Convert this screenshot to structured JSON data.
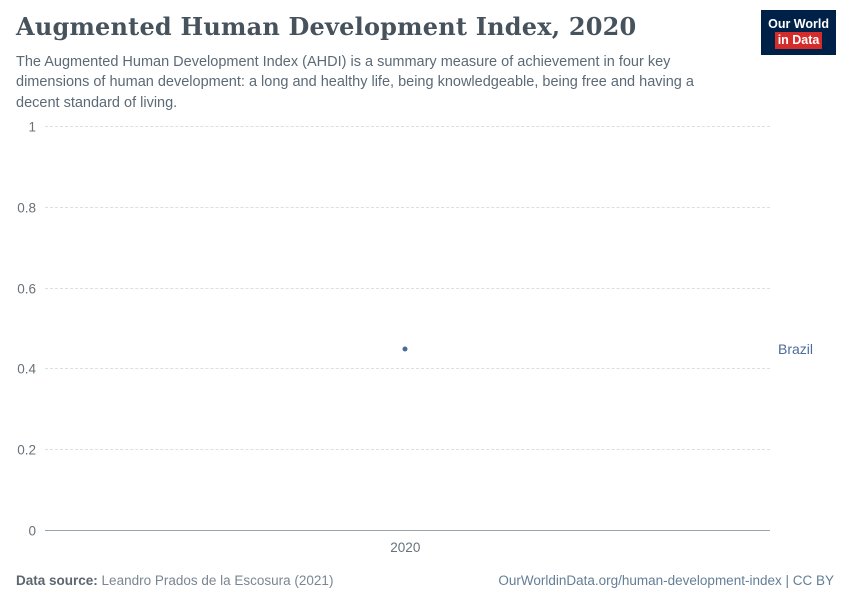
{
  "header": {
    "title": "Augmented Human Development Index, 2020",
    "subtitle": "The Augmented Human Development Index (AHDI) is a summary measure of achievement in four key dimensions of human development: a long and healthy life, being knowledgeable, being free and having a decent standard of living.",
    "logo": {
      "line1": "Our World",
      "line2": "in Data",
      "bg": "#002147",
      "accent": "#d42b2b"
    }
  },
  "chart_data": {
    "type": "scatter",
    "title": "Augmented Human Development Index, 2020",
    "x": [
      2020
    ],
    "series": [
      {
        "name": "Brazil",
        "values": [
          0.45
        ],
        "color": "#4c6a9c"
      }
    ],
    "xlabel": "",
    "ylabel": "",
    "ylim": [
      0,
      1
    ],
    "yticks": [
      {
        "value": 0,
        "label": "0"
      },
      {
        "value": 0.2,
        "label": "0.2"
      },
      {
        "value": 0.4,
        "label": "0.4"
      },
      {
        "value": 0.6,
        "label": "0.6"
      },
      {
        "value": 0.8,
        "label": "0.8"
      },
      {
        "value": 1,
        "label": "1"
      }
    ],
    "xticks": [
      {
        "label": "2020",
        "pos": 0.497
      }
    ],
    "grid": "horizontal dashed gridlines, solid baseline at 0",
    "legend": "entity label to the right of the point"
  },
  "footer": {
    "source_label": "Data source:",
    "source_value": "Leandro Prados de la Escosura (2021)",
    "link": "OurWorldinData.org/human-development-index | CC BY"
  }
}
